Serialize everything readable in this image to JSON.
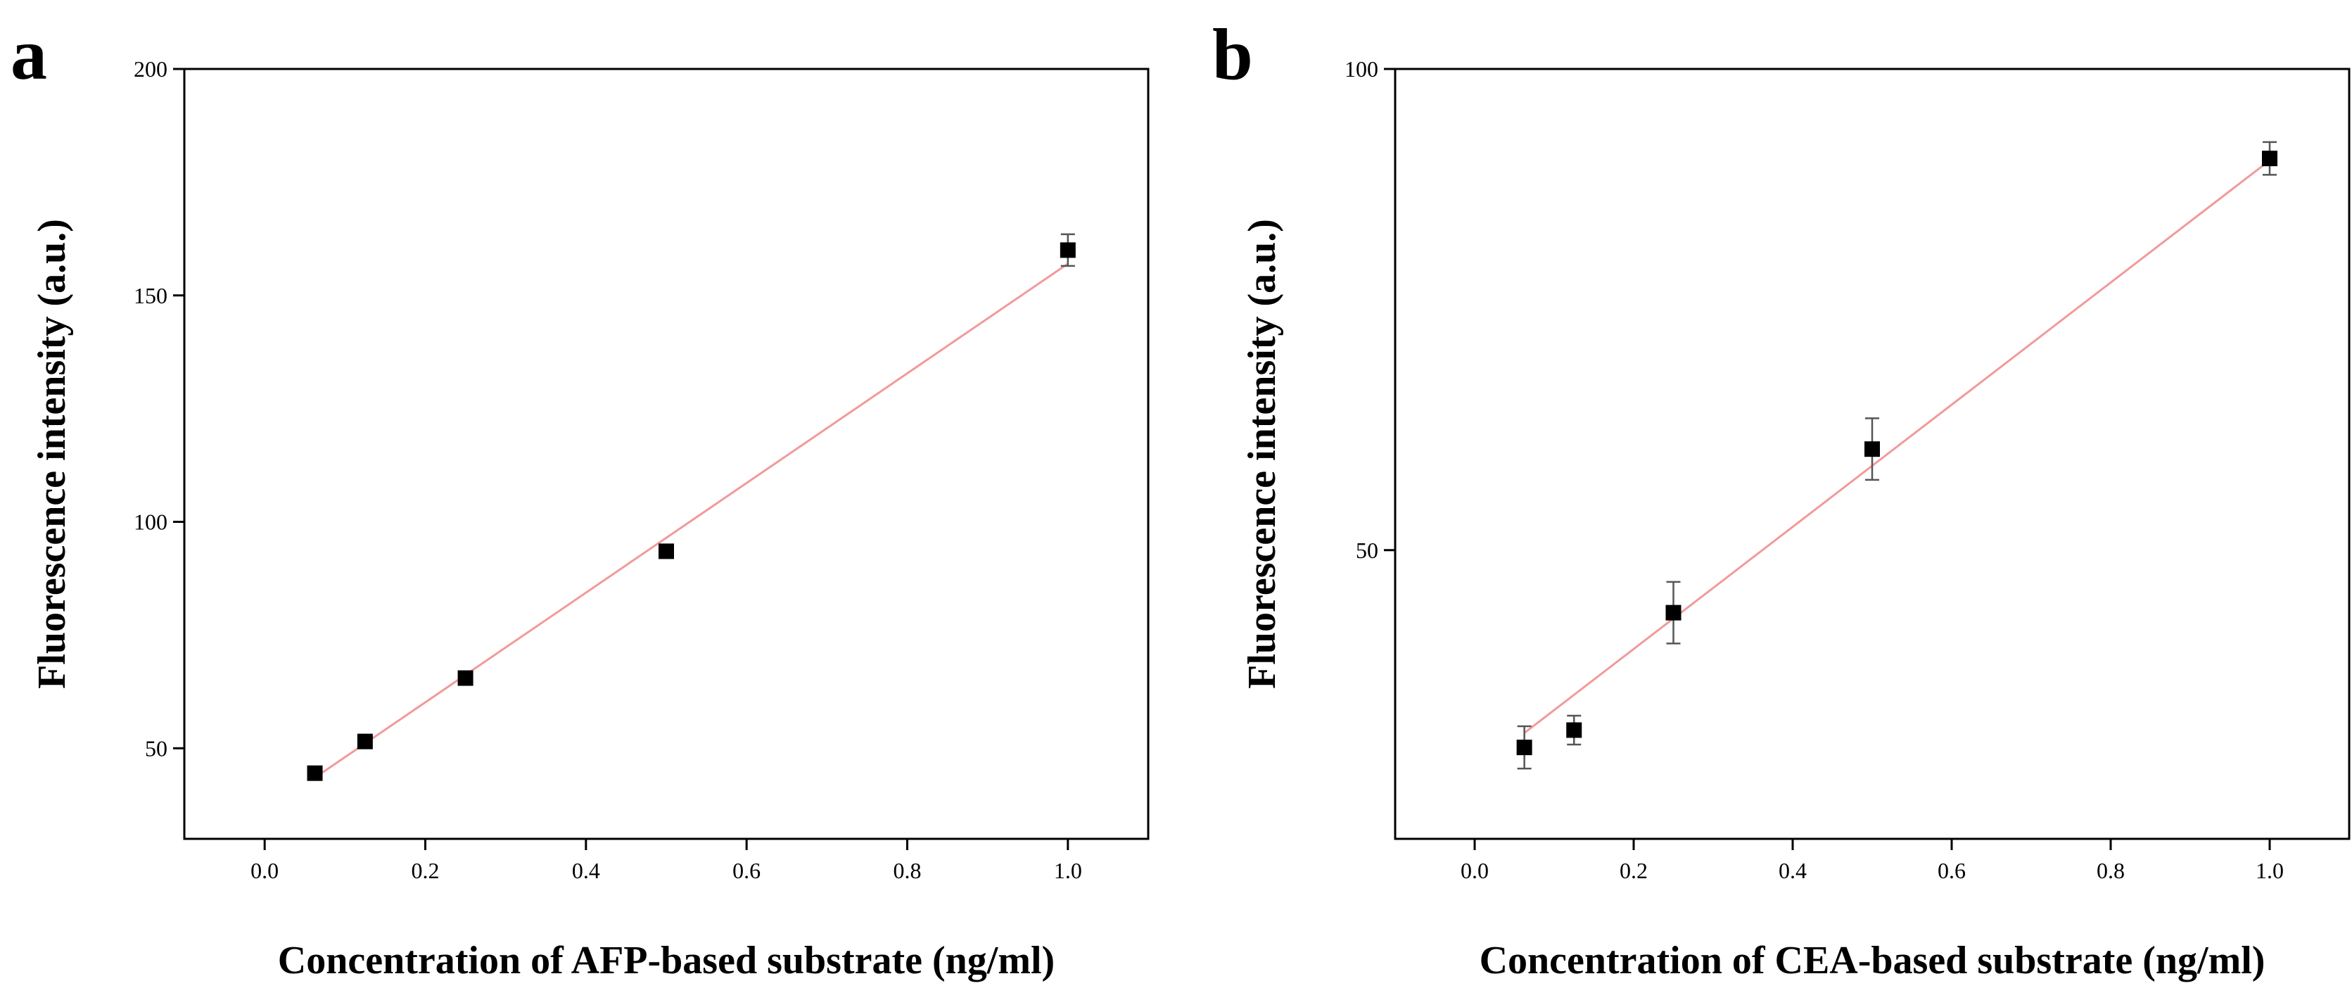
{
  "chart_data": [
    {
      "type": "scatter",
      "panel_label": "a",
      "xlabel": "Concentration of AFP-based substrate (ng/ml)",
      "ylabel": "Fluorescence intensity (a.u.)",
      "xlim": [
        -0.1,
        1.1
      ],
      "ylim": [
        30,
        200
      ],
      "xticks": [
        0.0,
        0.2,
        0.4,
        0.6,
        0.8,
        1.0
      ],
      "yticks": [
        50,
        100,
        150,
        200
      ],
      "x_tick_labels": [
        "0.0",
        "0.2",
        "0.4",
        "0.6",
        "0.8",
        "1.0"
      ],
      "y_tick_labels": [
        "50",
        "100",
        "150",
        "200"
      ],
      "points": [
        {
          "x": 0.0625,
          "y": 44.5,
          "err": 1.0
        },
        {
          "x": 0.125,
          "y": 51.5,
          "err": 1.5
        },
        {
          "x": 0.25,
          "y": 65.5,
          "err": 1.0
        },
        {
          "x": 0.5,
          "y": 93.5,
          "err": 1.2
        },
        {
          "x": 1.0,
          "y": 160.0,
          "err": 3.5
        }
      ],
      "fit": {
        "x": [
          0.0625,
          1.0
        ],
        "y": [
          43.5,
          157.0
        ],
        "color": "#f29a9a"
      }
    },
    {
      "type": "scatter",
      "panel_label": "b",
      "xlabel": "Concentration of CEA-based substrate (ng/ml)",
      "ylabel": "Fluorescence intensity (a.u.)",
      "xlim": [
        -0.1,
        1.1
      ],
      "ylim": [
        20,
        100
      ],
      "xticks": [
        0.0,
        0.2,
        0.4,
        0.6,
        0.8,
        1.0
      ],
      "yticks": [
        50,
        100
      ],
      "x_tick_labels": [
        "0.0",
        "0.2",
        "0.4",
        "0.6",
        "0.8",
        "1.0"
      ],
      "y_tick_labels": [
        "50",
        "100"
      ],
      "points": [
        {
          "x": 0.0625,
          "y": 29.5,
          "err": 2.2
        },
        {
          "x": 0.125,
          "y": 31.3,
          "err": 1.5
        },
        {
          "x": 0.25,
          "y": 43.5,
          "err": 3.2
        },
        {
          "x": 0.5,
          "y": 60.5,
          "err": 3.2
        },
        {
          "x": 1.0,
          "y": 90.7,
          "err": 1.7
        }
      ],
      "fit": {
        "x": [
          0.0625,
          1.0
        ],
        "y": [
          31.0,
          90.5
        ],
        "color": "#f29a9a"
      }
    }
  ]
}
